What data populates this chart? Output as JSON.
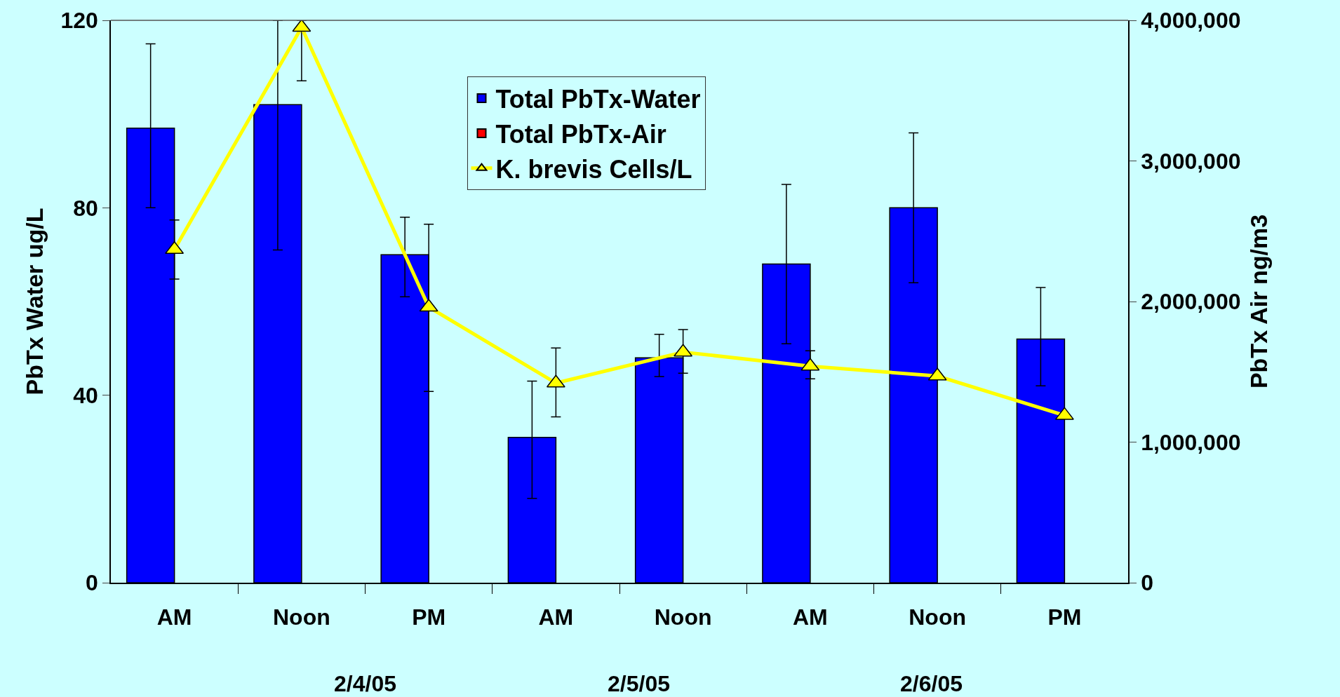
{
  "chart_data": {
    "type": "bar",
    "categories": [
      "AM",
      "Noon",
      "PM",
      "AM",
      "Noon",
      "AM",
      "Noon",
      "PM"
    ],
    "ylabel": "PbTx Water ug/L",
    "y2label": "PbTx Air ng/m3",
    "ylim": [
      0,
      120
    ],
    "yticks": [
      0,
      40,
      80,
      120
    ],
    "y2lim": [
      0,
      4000000
    ],
    "y2ticks": [
      {
        "value": 0,
        "label": "0"
      },
      {
        "value": 1000000,
        "label": "1,000,000"
      },
      {
        "value": 2000000,
        "label": "2,000,000"
      },
      {
        "value": 3000000,
        "label": "3,000,000"
      },
      {
        "value": 4000000,
        "label": "4,000,000"
      }
    ],
    "series": [
      {
        "name": "Total PbTx-Water",
        "color": "#0000ff",
        "values": [
          97,
          102,
          70,
          31,
          48,
          68,
          80,
          52
        ],
        "errors": [
          [
            80,
            115
          ],
          [
            71,
            120
          ],
          [
            61,
            78
          ],
          [
            18,
            43
          ],
          [
            44,
            53
          ],
          [
            51,
            85
          ],
          [
            64,
            96
          ],
          [
            42,
            63
          ]
        ]
      },
      {
        "name": "Total PbTx-Air",
        "color": "#ff0000",
        "values": [
          null,
          null,
          null,
          null,
          null,
          null,
          null,
          null
        ]
      },
      {
        "name": "K. brevis Cells/L",
        "type": "line",
        "axis": "y2",
        "color": "#ffff00",
        "marker": "triangle",
        "values": [
          2370000,
          3950000,
          1960000,
          1420000,
          1640000,
          1540000,
          1470000,
          1190000
        ],
        "errors": [
          [
            2160000,
            2580000
          ],
          [
            3570000,
            4000000
          ],
          [
            1360000,
            2550000
          ],
          [
            1180000,
            1670000
          ],
          [
            1490000,
            1800000
          ],
          [
            1450000,
            1650000
          ],
          null,
          null
        ]
      }
    ],
    "annotations": [
      "2/4/05",
      "2/5/05",
      "2/6/05"
    ],
    "legend": "top",
    "grid": false
  }
}
